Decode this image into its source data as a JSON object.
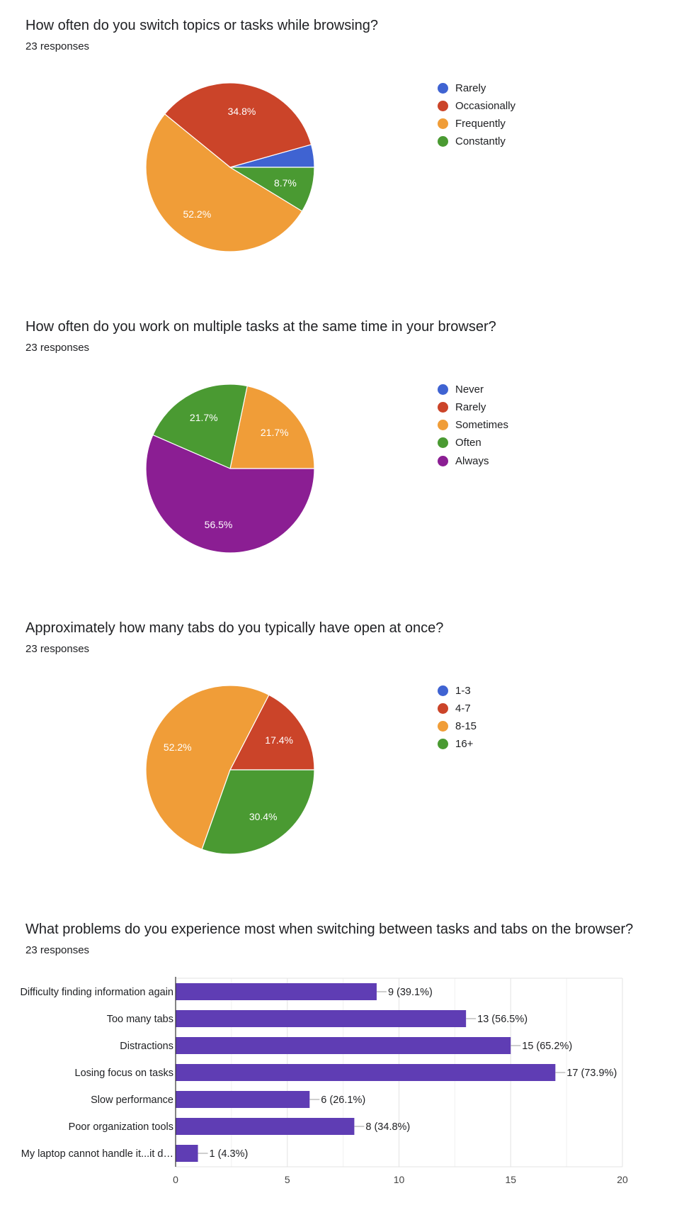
{
  "colors": {
    "blue": "#3F63D2",
    "red": "#CB4429",
    "orange": "#F09D38",
    "green": "#4A9A32",
    "purple": "#8B1E93",
    "bar": "#5F3DB4"
  },
  "chart_data": [
    {
      "type": "pie",
      "title": "How often do you switch topics or tasks while browsing?",
      "subtitle": "23 responses",
      "legend_position": "right",
      "slices": [
        {
          "label": "Rarely",
          "value": 1,
          "percent_label": "",
          "color": "#3F63D2"
        },
        {
          "label": "Occasionally",
          "value": 8,
          "percent_label": "34.8%",
          "color": "#CB4429"
        },
        {
          "label": "Frequently",
          "value": 12,
          "percent_label": "52.2%",
          "color": "#F09D38"
        },
        {
          "label": "Constantly",
          "value": 2,
          "percent_label": "8.7%",
          "color": "#4A9A32"
        }
      ]
    },
    {
      "type": "pie",
      "title": "How often do you work on multiple tasks at the same time in your browser?",
      "subtitle": "23 responses",
      "legend_position": "right",
      "slices": [
        {
          "label": "Never",
          "value": 0,
          "percent_label": "",
          "color": "#3F63D2"
        },
        {
          "label": "Rarely",
          "value": 0,
          "percent_label": "",
          "color": "#CB4429"
        },
        {
          "label": "Sometimes",
          "value": 5,
          "percent_label": "21.7%",
          "color": "#F09D38"
        },
        {
          "label": "Often",
          "value": 5,
          "percent_label": "21.7%",
          "color": "#4A9A32"
        },
        {
          "label": "Always",
          "value": 13,
          "percent_label": "56.5%",
          "color": "#8B1E93"
        }
      ]
    },
    {
      "type": "pie",
      "title": "Approximately how many tabs do you typically have open at once?",
      "subtitle": "23 responses",
      "legend_position": "right",
      "slices": [
        {
          "label": "1-3",
          "value": 0,
          "percent_label": "",
          "color": "#3F63D2"
        },
        {
          "label": "4-7",
          "value": 4,
          "percent_label": "17.4%",
          "color": "#CB4429"
        },
        {
          "label": "8-15",
          "value": 12,
          "percent_label": "52.2%",
          "color": "#F09D38"
        },
        {
          "label": "16+",
          "value": 7,
          "percent_label": "30.4%",
          "color": "#4A9A32"
        }
      ]
    },
    {
      "type": "bar",
      "orientation": "horizontal",
      "title": "What problems do you experience most when switching between tasks and tabs on the browser?",
      "subtitle": "23 responses",
      "xlim": [
        0,
        20
      ],
      "xticks": [
        0,
        5,
        10,
        15,
        20
      ],
      "grid": true,
      "color": "#5F3DB4",
      "categories": [
        "Difficulty finding information again",
        "Too many tabs",
        "Distractions",
        "Losing focus on tasks",
        "Slow performance",
        "Poor organization tools",
        "My laptop cannot handle it...it d…"
      ],
      "values": [
        9,
        13,
        15,
        17,
        6,
        8,
        1
      ],
      "data_labels": [
        "9 (39.1%)",
        "13 (56.5%)",
        "15 (65.2%)",
        "17 (73.9%)",
        "6 (26.1%)",
        "8 (34.8%)",
        "1 (4.3%)"
      ]
    }
  ]
}
